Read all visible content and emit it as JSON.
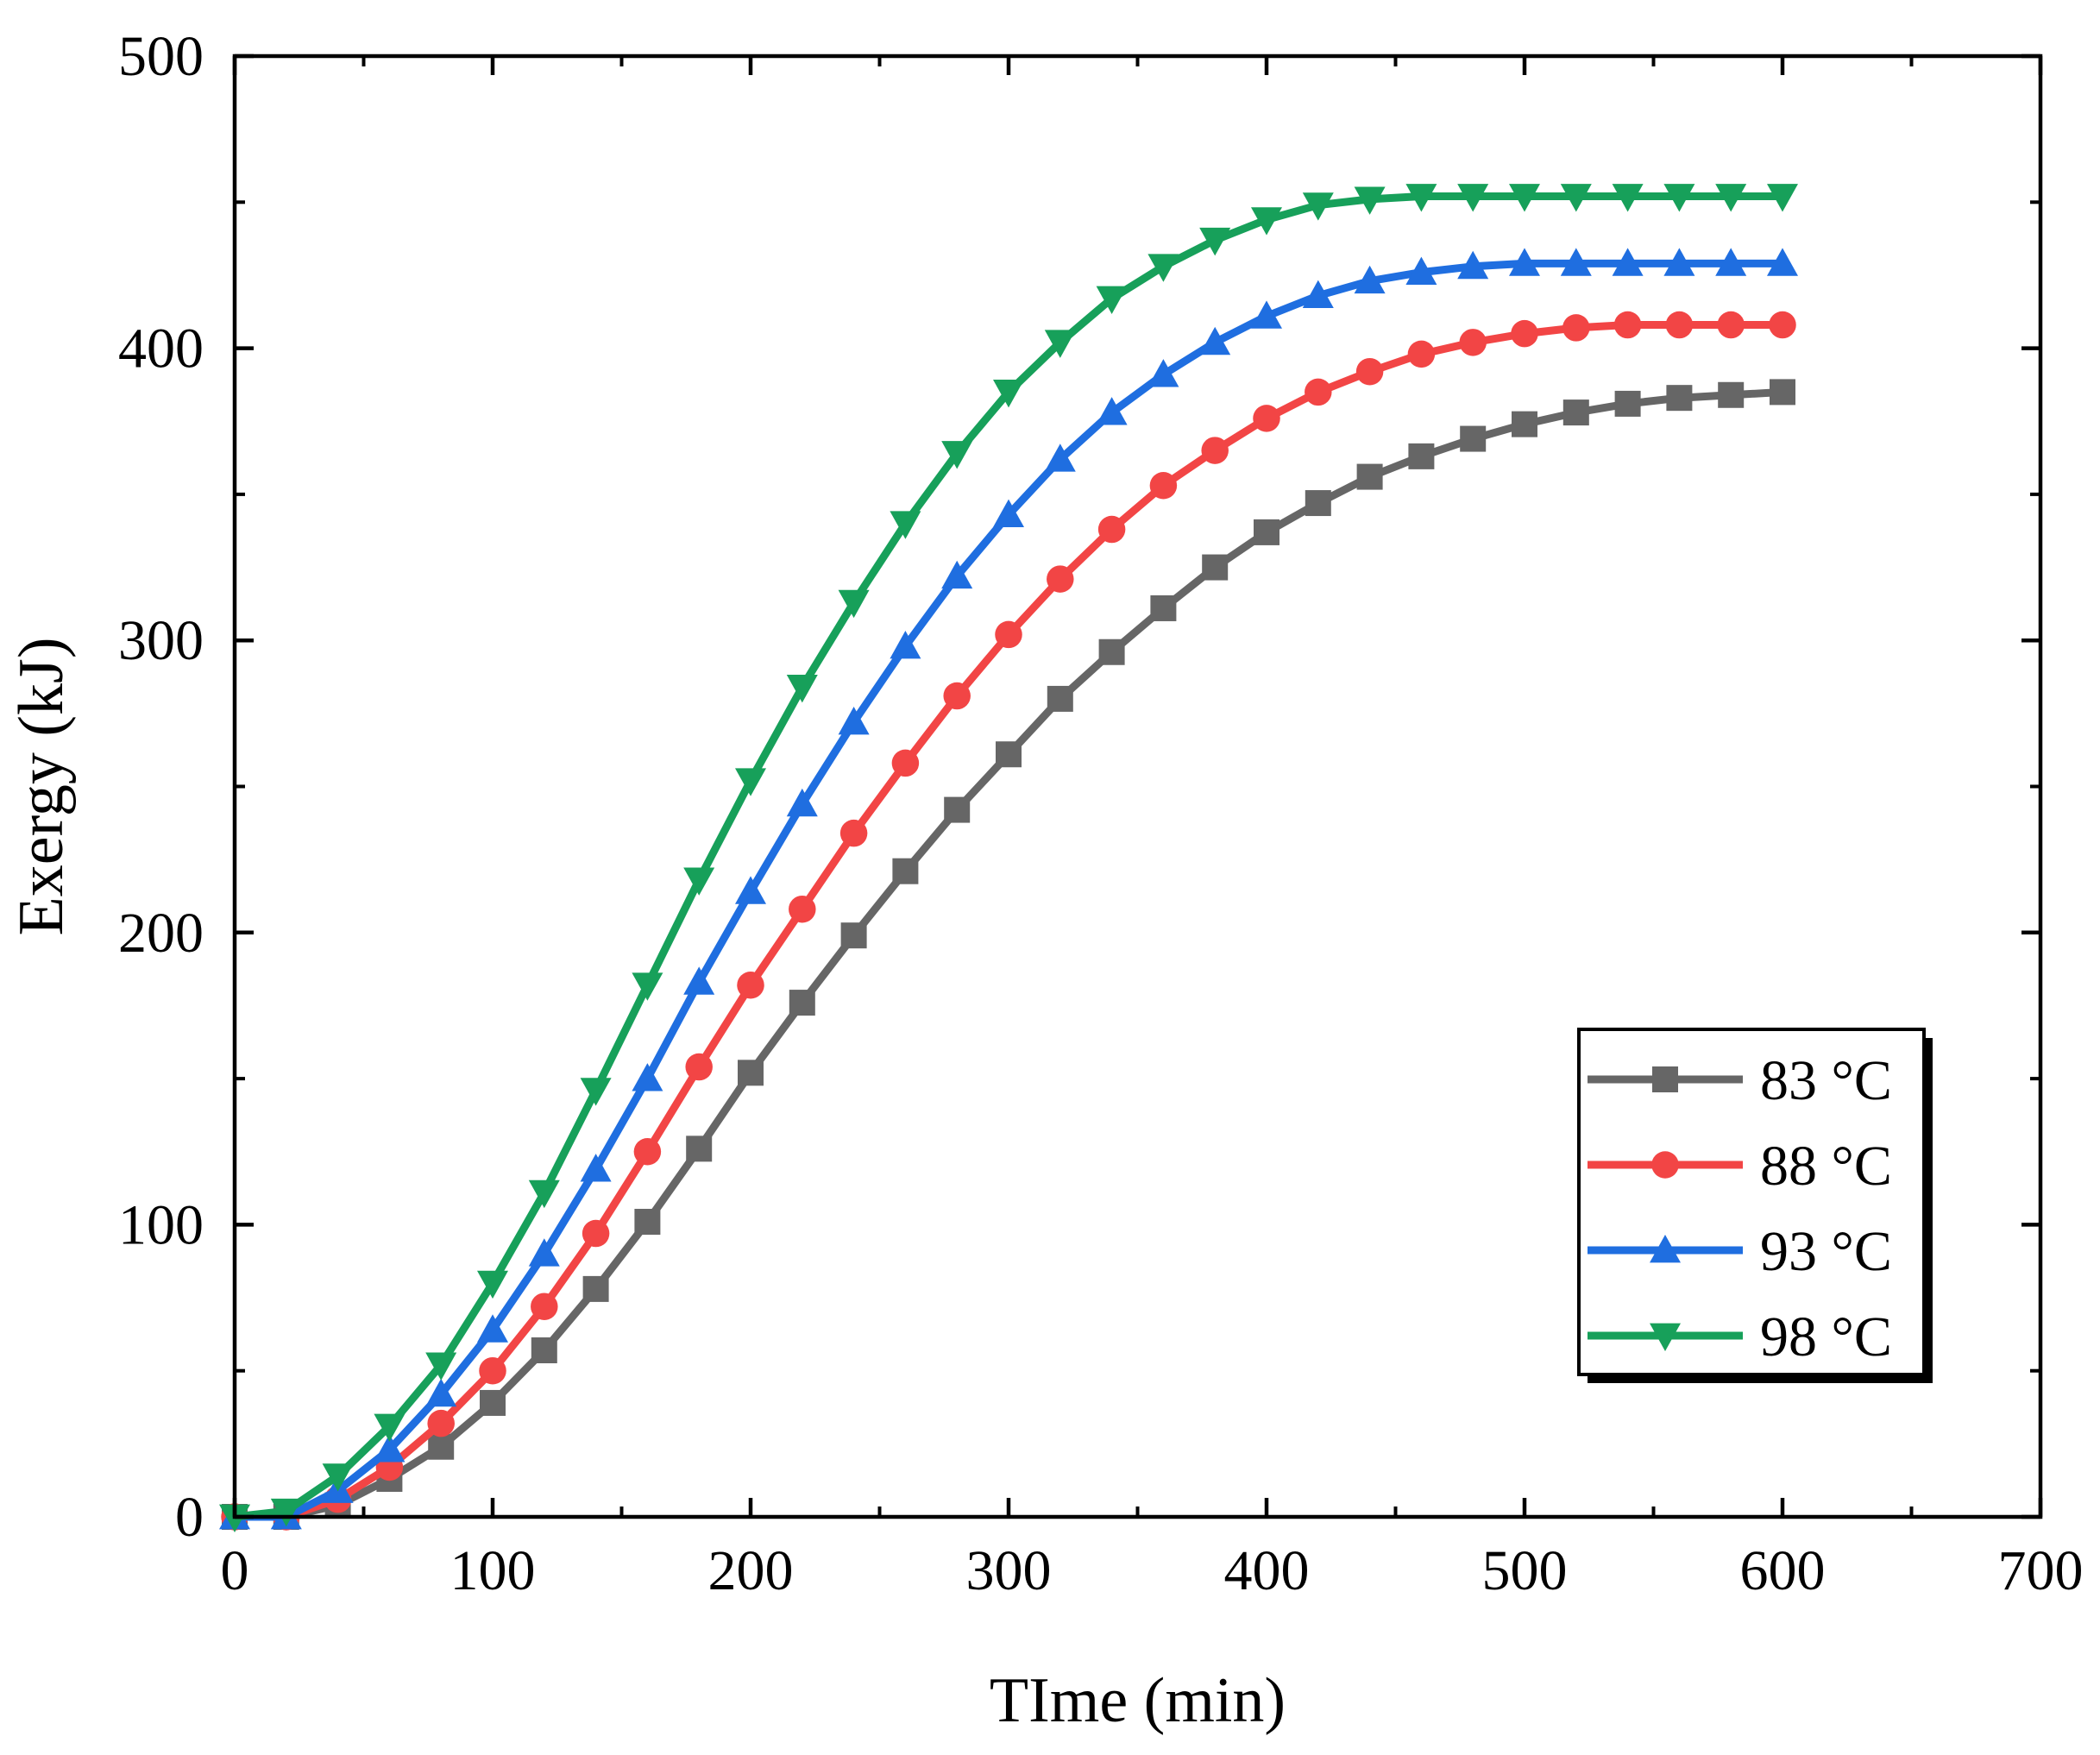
{
  "chart_data": {
    "type": "line",
    "title": "",
    "xlabel": "TIme (min)",
    "ylabel": "Exergy (kJ)",
    "xlim": [
      0,
      700
    ],
    "ylim": [
      0,
      500
    ],
    "xticks": [
      0,
      100,
      200,
      300,
      400,
      500,
      600,
      700
    ],
    "yticks": [
      0,
      100,
      200,
      300,
      400,
      500
    ],
    "grid": false,
    "legend_position": "bottom-right",
    "x": [
      0,
      20,
      40,
      60,
      80,
      100,
      120,
      140,
      160,
      180,
      200,
      220,
      240,
      260,
      280,
      300,
      320,
      340,
      360,
      380,
      400,
      420,
      440,
      460,
      480,
      500,
      520,
      540,
      560,
      580,
      600
    ],
    "series": [
      {
        "name": "83 °C",
        "color": "#666666",
        "marker": "square",
        "values": [
          0,
          0,
          4,
          13,
          24,
          39,
          57,
          78,
          101,
          126,
          152,
          176,
          199,
          221,
          242,
          261,
          280,
          296,
          311,
          325,
          337,
          347,
          356,
          363,
          369,
          374,
          378,
          381,
          383,
          384,
          385
        ]
      },
      {
        "name": "88 °C",
        "color": "#f24545",
        "marker": "circle",
        "values": [
          0,
          0,
          6,
          17,
          32,
          50,
          72,
          97,
          125,
          154,
          182,
          208,
          234,
          258,
          281,
          302,
          321,
          338,
          353,
          365,
          376,
          385,
          392,
          398,
          402,
          405,
          407,
          408,
          408,
          408,
          408
        ]
      },
      {
        "name": "93 °C",
        "color": "#1f6ee0",
        "marker": "triangle-up",
        "values": [
          0,
          0,
          9,
          23,
          42,
          64,
          90,
          119,
          150,
          183,
          214,
          244,
          272,
          298,
          322,
          343,
          362,
          378,
          391,
          402,
          411,
          418,
          423,
          426,
          428,
          429,
          429,
          429,
          429,
          429,
          429
        ]
      },
      {
        "name": "98 °C",
        "color": "#17a05a",
        "marker": "triangle-down",
        "values": [
          0,
          2,
          14,
          31,
          52,
          80,
          111,
          146,
          182,
          218,
          252,
          284,
          313,
          340,
          364,
          385,
          402,
          417,
          428,
          437,
          444,
          449,
          451,
          452,
          452,
          452,
          452,
          452,
          452,
          452,
          452
        ]
      }
    ]
  }
}
